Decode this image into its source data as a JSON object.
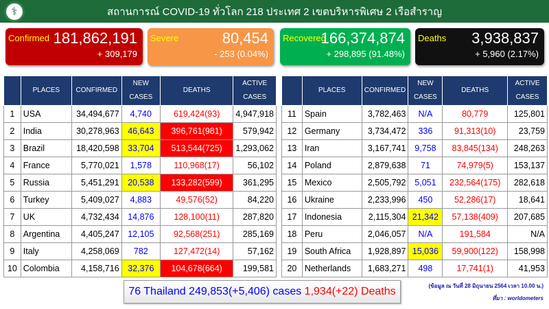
{
  "header": {
    "title": "สถานการณ์ COVID-19 ทั่วโลก 218 ประเทศ 2 เขตบริหารพิเศษ 2 เรือสำราญ",
    "logo_icon": "caduceus-icon"
  },
  "cards": [
    {
      "label": "Confirmed",
      "value": "181,862,191",
      "change": "+ 309,179",
      "color": "#c00000"
    },
    {
      "label": "Severe",
      "value": "80,454",
      "change": "- 253 (0.04%)",
      "color": "#f79646"
    },
    {
      "label": "Recovered",
      "value": "166,374,874",
      "change": "+ 298,895 (91.48%)",
      "color": "#00b050"
    },
    {
      "label": "Deaths",
      "value": "3,938,837",
      "change": "+ 5,960 (2.17%)",
      "color": "#111111"
    }
  ],
  "columns": [
    "PLACES",
    "CONFIRMED",
    "NEW CASES",
    "DEATHS",
    "ACTIVE CASES"
  ],
  "left_rows": [
    {
      "rank": "1",
      "place": "USA",
      "confirmed": "34,494,677",
      "new": "4,740",
      "deaths": "619,424(93)",
      "active": "4,947,918",
      "hl": false
    },
    {
      "rank": "2",
      "place": "India",
      "confirmed": "30,278,963",
      "new": "46,643",
      "deaths": "396,761(981)",
      "active": "579,942",
      "hl": true
    },
    {
      "rank": "3",
      "place": "Brazil",
      "confirmed": "18,420,598",
      "new": "33,704",
      "deaths": "513,544(725)",
      "active": "1,293,062",
      "hl": true
    },
    {
      "rank": "4",
      "place": "France",
      "confirmed": "5,770,021",
      "new": "1,578",
      "deaths": "110,968(17)",
      "active": "56,102",
      "hl": false
    },
    {
      "rank": "5",
      "place": "Russia",
      "confirmed": "5,451,291",
      "new": "20,538",
      "deaths": "133,282(599)",
      "active": "361,295",
      "hl": true
    },
    {
      "rank": "6",
      "place": "Turkey",
      "confirmed": "5,409,027",
      "new": "4,883",
      "deaths": "49,576(52)",
      "active": "84,220",
      "hl": false
    },
    {
      "rank": "7",
      "place": "UK",
      "confirmed": "4,732,434",
      "new": "14,876",
      "deaths": "128,100(11)",
      "active": "287,820",
      "hl": false
    },
    {
      "rank": "8",
      "place": "Argentina",
      "confirmed": "4,405,247",
      "new": "12,105",
      "deaths": "92,568(251)",
      "active": "285,169",
      "hl": false
    },
    {
      "rank": "9",
      "place": "Italy",
      "confirmed": "4,258,069",
      "new": "782",
      "deaths": "127,472(14)",
      "active": "57,162",
      "hl": false
    },
    {
      "rank": "10",
      "place": "Colombia",
      "confirmed": "4,158,716",
      "new": "32,376",
      "deaths": "104,678(664)",
      "active": "199,581",
      "hl": true
    }
  ],
  "right_rows": [
    {
      "rank": "11",
      "place": "Spain",
      "confirmed": "3,782,463",
      "new": "N/A",
      "deaths": "80,779",
      "active": "125,801",
      "hl": false
    },
    {
      "rank": "12",
      "place": "Germany",
      "confirmed": "3,734,472",
      "new": "336",
      "deaths": "91,313(10)",
      "active": "23,759",
      "hl": false
    },
    {
      "rank": "13",
      "place": "Iran",
      "confirmed": "3,167,741",
      "new": "9,758",
      "deaths": "83,845(134)",
      "active": "248,263",
      "hl": false
    },
    {
      "rank": "14",
      "place": "Poland",
      "confirmed": "2,879,638",
      "new": "71",
      "deaths": "74,979(5)",
      "active": "153,137",
      "hl": false
    },
    {
      "rank": "15",
      "place": "Mexico",
      "confirmed": "2,505,792",
      "new": "5,051",
      "deaths": "232,564(175)",
      "active": "282,618",
      "hl": false
    },
    {
      "rank": "16",
      "place": "Ukraine",
      "confirmed": "2,233,996",
      "new": "450",
      "deaths": "52,286(17)",
      "active": "18,641",
      "hl": false
    },
    {
      "rank": "17",
      "place": "Indonesia",
      "confirmed": "2,115,304",
      "new": "21,342",
      "deaths": "57,138(409)",
      "active": "207,685",
      "hl": true
    },
    {
      "rank": "18",
      "place": "Peru",
      "confirmed": "2,046,057",
      "new": "N/A",
      "deaths": "191,584",
      "active": "N/A",
      "hl": false
    },
    {
      "rank": "19",
      "place": "South Africa",
      "confirmed": "1,928,897",
      "new": "15,036",
      "deaths": "59,900(122)",
      "active": "158,998",
      "hl": true
    },
    {
      "rank": "20",
      "place": "Netherlands",
      "confirmed": "1,683,271",
      "new": "498",
      "deaths": "17,741(1)",
      "active": "41,953",
      "hl": false
    }
  ],
  "thailand": {
    "cases": "76 Thailand 249,853(+5,406) cases",
    "deaths": "1,934(+22) Deaths"
  },
  "note": {
    "date": "(ข้อมูล ณ วันที่ 28 มิถุนายน 2564 เวลา 10.00 น.)",
    "source": "ที่มา : worldometers"
  }
}
